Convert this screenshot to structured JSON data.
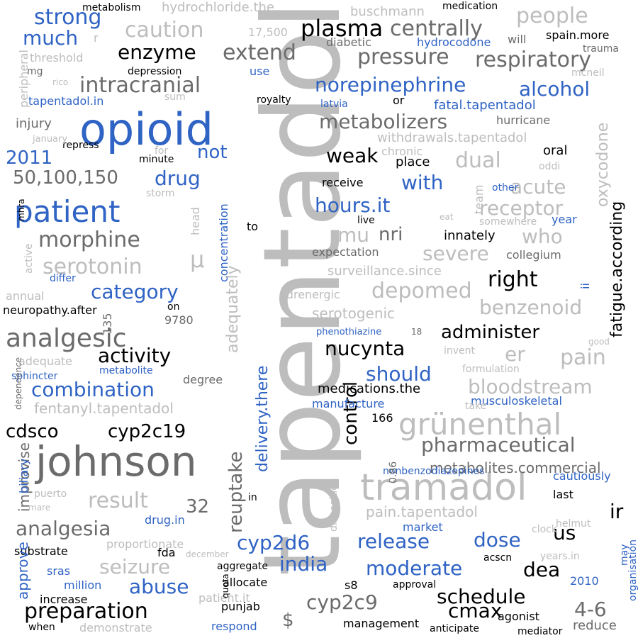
{
  "palette": {
    "blue": "#2f63c4",
    "dark": "#000000",
    "gray": "#6b6b6b",
    "light": "#bdbdbd"
  },
  "words": [
    {
      "text": "tapentadol",
      "color": "light",
      "vertical": true
    },
    {
      "text": "opioid",
      "color": "blue"
    },
    {
      "text": "johnson",
      "color": "gray"
    },
    {
      "text": "tramadol",
      "color": "light"
    },
    {
      "text": "patient",
      "color": "blue"
    },
    {
      "text": "grünenthal",
      "color": "light"
    },
    {
      "text": "analgesic",
      "color": "gray"
    },
    {
      "text": "plasma",
      "color": "dark"
    },
    {
      "text": "centrally",
      "color": "gray"
    },
    {
      "text": "strong",
      "color": "blue"
    },
    {
      "text": "much",
      "color": "blue"
    },
    {
      "text": "caution",
      "color": "light"
    },
    {
      "text": "people",
      "color": "light"
    },
    {
      "text": "extend",
      "color": "gray"
    },
    {
      "text": "enzyme",
      "color": "dark"
    },
    {
      "text": "pressure",
      "color": "gray"
    },
    {
      "text": "respiratory",
      "color": "gray"
    },
    {
      "text": "intracranial",
      "color": "gray"
    },
    {
      "text": "norepinephrine",
      "color": "blue"
    },
    {
      "text": "alcohol",
      "color": "blue"
    },
    {
      "text": "metabolizers",
      "color": "gray"
    },
    {
      "text": "2011",
      "color": "blue"
    },
    {
      "text": "not",
      "color": "blue"
    },
    {
      "text": "weak",
      "color": "dark"
    },
    {
      "text": "dual",
      "color": "light"
    },
    {
      "text": "50,100,150",
      "color": "gray"
    },
    {
      "text": "drug",
      "color": "blue"
    },
    {
      "text": "with",
      "color": "blue"
    },
    {
      "text": "acute",
      "color": "light"
    },
    {
      "text": "hours.it",
      "color": "blue"
    },
    {
      "text": "receptor",
      "color": "light"
    },
    {
      "text": "morphine",
      "color": "gray"
    },
    {
      "text": "mu",
      "color": "light"
    },
    {
      "text": "nri",
      "color": "gray"
    },
    {
      "text": "who",
      "color": "light"
    },
    {
      "text": "serotonin",
      "color": "light"
    },
    {
      "text": "μ",
      "color": "light"
    },
    {
      "text": "severe",
      "color": "light"
    },
    {
      "text": "category",
      "color": "blue"
    },
    {
      "text": "depomed",
      "color": "light"
    },
    {
      "text": "right",
      "color": "dark"
    },
    {
      "text": "benzenoid",
      "color": "light"
    },
    {
      "text": "activity",
      "color": "dark"
    },
    {
      "text": "administer",
      "color": "dark"
    },
    {
      "text": "nucynta",
      "color": "dark"
    },
    {
      "text": "er",
      "color": "light"
    },
    {
      "text": "pain",
      "color": "light"
    },
    {
      "text": "should",
      "color": "blue"
    },
    {
      "text": "combination",
      "color": "blue"
    },
    {
      "text": "bloodstream",
      "color": "light"
    },
    {
      "text": "cdsco",
      "color": "dark"
    },
    {
      "text": "cyp2c19",
      "color": "dark"
    },
    {
      "text": "pharmaceutical",
      "color": "gray"
    },
    {
      "text": "metabolites.commercial",
      "color": "gray"
    },
    {
      "text": "result",
      "color": "light"
    },
    {
      "text": "32",
      "color": "gray"
    },
    {
      "text": "ir",
      "color": "dark"
    },
    {
      "text": "analgesia",
      "color": "gray"
    },
    {
      "text": "cyp2d6",
      "color": "blue"
    },
    {
      "text": "release",
      "color": "blue"
    },
    {
      "text": "dose",
      "color": "blue"
    },
    {
      "text": "us",
      "color": "dark"
    },
    {
      "text": "seizure",
      "color": "light"
    },
    {
      "text": "india",
      "color": "blue"
    },
    {
      "text": "moderate",
      "color": "blue"
    },
    {
      "text": "dea",
      "color": "dark"
    },
    {
      "text": "abuse",
      "color": "blue"
    },
    {
      "text": "schedule",
      "color": "dark"
    },
    {
      "text": "preparation",
      "color": "dark"
    },
    {
      "text": "cyp2c9",
      "color": "gray"
    },
    {
      "text": "cmax",
      "color": "dark"
    },
    {
      "text": "4-6",
      "color": "gray"
    },
    {
      "text": "$",
      "color": "gray"
    },
    {
      "text": "fentanyl.tapentadol",
      "color": "light"
    },
    {
      "text": "medications.the",
      "color": "dark"
    },
    {
      "text": "pain.tapentadol",
      "color": "light"
    },
    {
      "text": "reuptake",
      "color": "gray",
      "vertical": true
    },
    {
      "text": "control",
      "color": "dark",
      "vertical": true
    },
    {
      "text": "delivery.there",
      "color": "blue",
      "vertical": true
    },
    {
      "text": "adequately",
      "color": "light",
      "vertical": true
    },
    {
      "text": "fatigue.according",
      "color": "dark",
      "vertical": true
    },
    {
      "text": "oxycodone",
      "color": "light",
      "vertical": true
    },
    {
      "text": "tapentadol.in",
      "color": "blue"
    },
    {
      "text": "fatal.tapentadol",
      "color": "blue"
    },
    {
      "text": "withdrawals.tapentadol",
      "color": "light"
    },
    {
      "text": "surveillance.since",
      "color": "light"
    },
    {
      "text": "serotogenic",
      "color": "light"
    },
    {
      "text": "threshold",
      "color": "light"
    },
    {
      "text": "hydrochloride.the",
      "color": "light"
    },
    {
      "text": "buschmann",
      "color": "light"
    },
    {
      "text": "17,500",
      "color": "light"
    },
    {
      "text": "spain.more",
      "color": "dark"
    },
    {
      "text": "diabetic",
      "color": "gray"
    },
    {
      "text": "hydrocodone",
      "color": "blue"
    },
    {
      "text": "use",
      "color": "blue"
    },
    {
      "text": "injury",
      "color": "gray"
    },
    {
      "text": "hurricane",
      "color": "gray"
    },
    {
      "text": "collegium",
      "color": "gray"
    },
    {
      "text": "expectation",
      "color": "gray"
    },
    {
      "text": "receive",
      "color": "dark"
    },
    {
      "text": "innately",
      "color": "dark"
    },
    {
      "text": "place",
      "color": "dark"
    },
    {
      "text": "oral",
      "color": "dark"
    },
    {
      "text": "neuropathy.after",
      "color": "dark"
    },
    {
      "text": "9780",
      "color": "gray"
    },
    {
      "text": "adequate",
      "color": "light"
    },
    {
      "text": "degree",
      "color": "gray"
    },
    {
      "text": "manufacture",
      "color": "blue"
    },
    {
      "text": "musculoskeletal",
      "color": "blue"
    },
    {
      "text": "cautiously",
      "color": "blue"
    },
    {
      "text": "last",
      "color": "dark"
    },
    {
      "text": "drug.in",
      "color": "blue"
    },
    {
      "text": "market",
      "color": "blue"
    },
    {
      "text": "substrate",
      "color": "dark"
    },
    {
      "text": "proportionate",
      "color": "light"
    },
    {
      "text": "fda",
      "color": "dark"
    },
    {
      "text": "sras",
      "color": "blue"
    },
    {
      "text": "million",
      "color": "blue"
    },
    {
      "text": "increase",
      "color": "dark"
    },
    {
      "text": "allocate",
      "color": "dark"
    },
    {
      "text": "patient.it",
      "color": "light"
    },
    {
      "text": "punjab",
      "color": "dark"
    },
    {
      "text": "respond",
      "color": "blue"
    },
    {
      "text": "demonstrate",
      "color": "light"
    },
    {
      "text": "management",
      "color": "dark"
    },
    {
      "text": "agonist",
      "color": "dark"
    },
    {
      "text": "reduce",
      "color": "gray"
    },
    {
      "text": "2010",
      "color": "blue"
    },
    {
      "text": "s8",
      "color": "dark"
    },
    {
      "text": "acscn",
      "color": "dark"
    },
    {
      "text": "approval",
      "color": "dark"
    },
    {
      "text": "anticipate",
      "color": "dark"
    },
    {
      "text": "mediator",
      "color": "dark"
    },
    {
      "text": "when",
      "color": "dark"
    },
    {
      "text": "166",
      "color": "dark"
    },
    {
      "text": "take",
      "color": "light"
    },
    {
      "text": "formulation",
      "color": "light"
    },
    {
      "text": "invent",
      "color": "light"
    },
    {
      "text": "other",
      "color": "blue"
    },
    {
      "text": "year",
      "color": "blue"
    },
    {
      "text": "phenothiazine",
      "color": "blue"
    },
    {
      "text": "metabolite",
      "color": "blue"
    },
    {
      "text": "sphincter",
      "color": "blue"
    },
    {
      "text": "nonbenzodiazepines",
      "color": "blue"
    },
    {
      "text": "latvia",
      "color": "blue"
    },
    {
      "text": "differ",
      "color": "blue"
    },
    {
      "text": "metabolism",
      "color": "dark"
    },
    {
      "text": "medication",
      "color": "dark"
    },
    {
      "text": "depression",
      "color": "dark"
    },
    {
      "text": "royalty",
      "color": "dark"
    },
    {
      "text": "or",
      "color": "dark"
    },
    {
      "text": "repress",
      "color": "dark"
    },
    {
      "text": "minute",
      "color": "dark"
    },
    {
      "text": "to",
      "color": "dark"
    },
    {
      "text": "live",
      "color": "dark"
    },
    {
      "text": "in",
      "color": "dark"
    },
    {
      "text": "on",
      "color": "dark"
    },
    {
      "text": "aggregate",
      "color": "dark"
    },
    {
      "text": "will",
      "color": "gray"
    },
    {
      "text": "trauma",
      "color": "gray"
    },
    {
      "text": "mcneil",
      "color": "light"
    },
    {
      "text": "mg",
      "color": "gray"
    },
    {
      "text": "rico",
      "color": "light"
    },
    {
      "text": "sum",
      "color": "light"
    },
    {
      "text": "january",
      "color": "light"
    },
    {
      "text": "for",
      "color": "light"
    },
    {
      "text": "storm",
      "color": "light"
    },
    {
      "text": "chronic",
      "color": "light"
    },
    {
      "text": "oddi",
      "color": "light"
    },
    {
      "text": "somewhere",
      "color": "light"
    },
    {
      "text": "eat",
      "color": "light"
    },
    {
      "text": "annual",
      "color": "light"
    },
    {
      "text": "adrenergic",
      "color": "light"
    },
    {
      "text": "18",
      "color": "gray"
    },
    {
      "text": "good",
      "color": "light"
    },
    {
      "text": "puerto",
      "color": "light"
    },
    {
      "text": "mare",
      "color": "light"
    },
    {
      "text": "december",
      "color": "light"
    },
    {
      "text": "clock",
      "color": "light"
    },
    {
      "text": "helmut",
      "color": "light"
    },
    {
      "text": "years.in",
      "color": "light"
    },
    {
      "text": "r",
      "color": "light"
    },
    {
      "text": "peripheral",
      "color": "light",
      "vertical": true
    },
    {
      "text": "head",
      "color": "light",
      "vertical": true
    },
    {
      "text": "concentration",
      "color": "blue",
      "vertical": true
    },
    {
      "text": "135",
      "color": "gray",
      "vertical": true
    },
    {
      "text": "team",
      "color": "light",
      "vertical": true
    },
    {
      "text": "ii",
      "color": "blue",
      "vertical": true
    },
    {
      "text": "active",
      "color": "light",
      "vertical": true
    },
    {
      "text": "mhra",
      "color": "dark",
      "vertical": true
    },
    {
      "text": "dependence",
      "color": "gray",
      "vertical": true
    },
    {
      "text": "improvise",
      "color": "gray",
      "vertical": true
    },
    {
      "text": "biliary",
      "color": "blue",
      "vertical": true
    },
    {
      "text": "approve",
      "color": "blue",
      "vertical": true
    },
    {
      "text": "0.86",
      "color": "gray",
      "vertical": true
    },
    {
      "text": "disposition",
      "color": "light",
      "vertical": true
    },
    {
      "text": "quota",
      "color": "dark",
      "vertical": true
    },
    {
      "text": "may",
      "color": "blue",
      "vertical": true
    },
    {
      "text": "organisation",
      "color": "blue",
      "vertical": true
    }
  ]
}
